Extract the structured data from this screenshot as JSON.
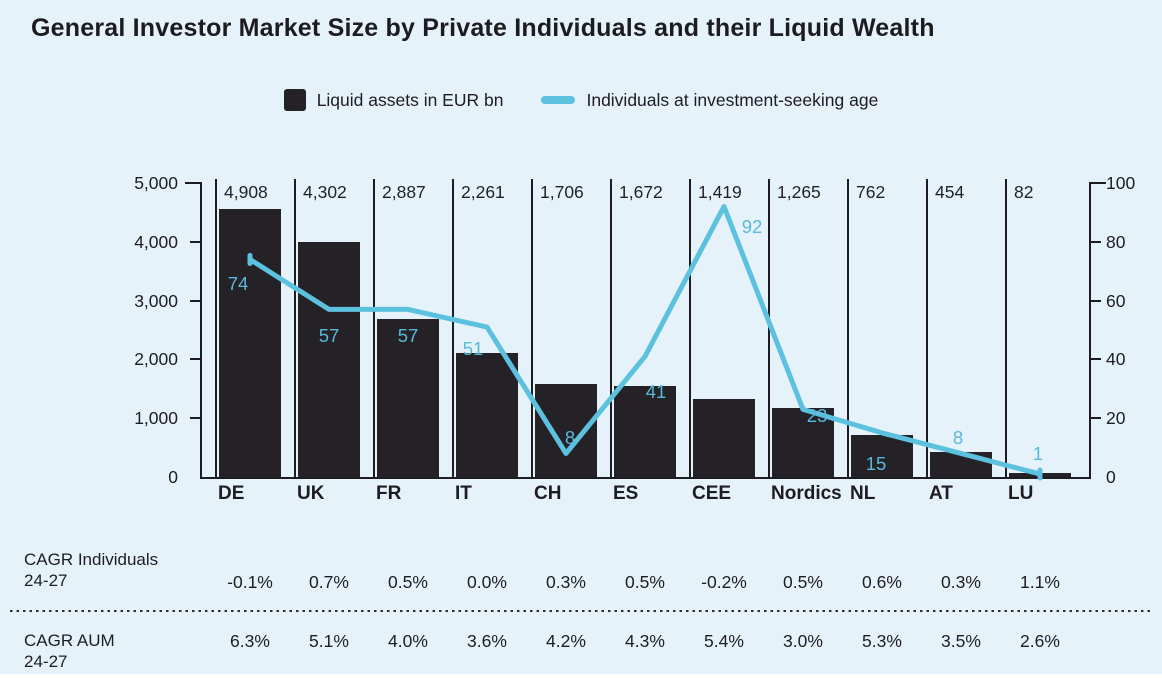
{
  "title": "General Investor Market Size by Private Individuals and their Liquid Wealth",
  "legend": {
    "items": [
      {
        "label": "Liquid assets in EUR bn",
        "swatch": "bar-swatch-icon"
      },
      {
        "label": "Individuals at investment-seeking age",
        "swatch": "line-swatch-icon"
      }
    ]
  },
  "chart_data": {
    "type": "bar",
    "categories": [
      "DE",
      "UK",
      "FR",
      "IT",
      "CH",
      "ES",
      "CEE",
      "Nordics",
      "NL",
      "AT",
      "LU"
    ],
    "series": [
      {
        "name": "Liquid assets in EUR bn",
        "type": "bar",
        "axis": "left",
        "values": [
          4908,
          4302,
          2887,
          2261,
          1706,
          1672,
          1419,
          1265,
          762,
          454,
          82
        ],
        "value_labels": [
          "4,908",
          "4,302",
          "2,887",
          "2,261",
          "1,706",
          "1,672",
          "1,419",
          "1,265",
          "762",
          "454",
          "82"
        ]
      },
      {
        "name": "Individuals at investment-seeking age",
        "type": "line",
        "axis": "right",
        "values": [
          74,
          57,
          57,
          51,
          8,
          41,
          92,
          23,
          15,
          8,
          1
        ],
        "value_labels": [
          "74",
          "57",
          "57",
          "51",
          "8",
          "41",
          "92",
          "23",
          "15",
          "8",
          "1"
        ]
      }
    ],
    "left_axis": {
      "min": 0,
      "max": 5000,
      "tick_labels": [
        "5,000",
        "4,000",
        "3,000",
        "2,000",
        "1,000",
        "0"
      ]
    },
    "right_axis": {
      "min": 0,
      "max": 100,
      "tick_labels": [
        "100",
        "80",
        "60",
        "40",
        "20",
        "0"
      ]
    },
    "grid": false,
    "legend_position": "top-center"
  },
  "table": {
    "rows": [
      {
        "label_line1": "CAGR Individuals",
        "label_line2": "24-27",
        "values": [
          "-0.1%",
          "0.7%",
          "0.5%",
          "0.0%",
          "0.3%",
          "0.5%",
          "-0.2%",
          "0.5%",
          "0.6%",
          "0.3%",
          "1.1%"
        ]
      },
      {
        "label_line1": "CAGR AUM",
        "label_line2": "24-27",
        "values": [
          "6.3%",
          "5.1%",
          "4.0%",
          "3.6%",
          "4.2%",
          "4.3%",
          "5.4%",
          "3.0%",
          "5.3%",
          "3.5%",
          "2.6%"
        ]
      }
    ]
  },
  "colors": {
    "background": "#E6F2FA",
    "bar": "#242227",
    "line": "#5CC1DF",
    "line_label": "#58B9DA",
    "text": "#1D1D21",
    "axis": "#1D1D21"
  }
}
